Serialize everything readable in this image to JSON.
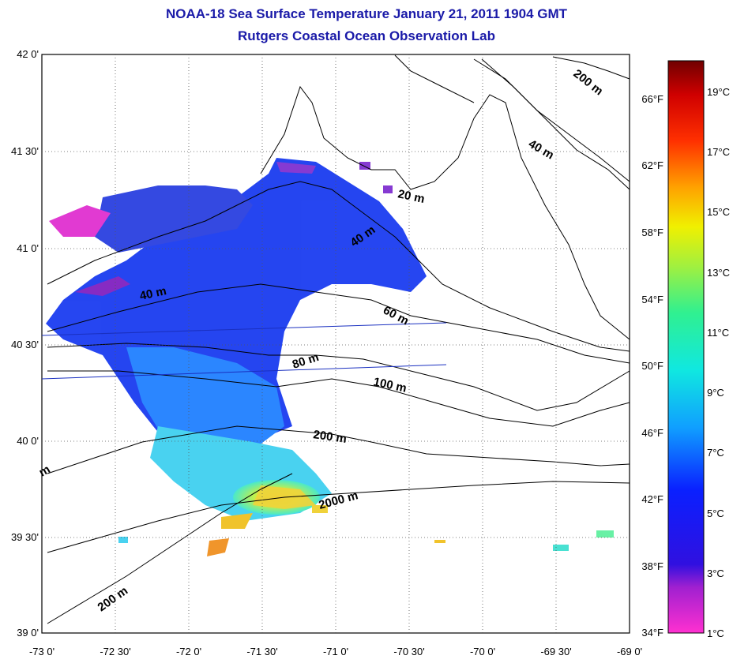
{
  "title": {
    "line1": "NOAA-18 Sea Surface Temperature January 21, 2011 1904 GMT",
    "line2": "Rutgers Coastal Ocean Observation Lab"
  },
  "lat_labels": [
    "42 0'",
    "41 30'",
    "41 0'",
    "40 30'",
    "40 0'",
    "39 30'",
    "39 0'"
  ],
  "lon_labels": [
    "-73 0'",
    "-72 30'",
    "-72 0'",
    "-71 30'",
    "-71 0'",
    "-70 30'",
    "-70 0'",
    "-69 30'",
    "-69 0'"
  ],
  "contour_labels": [
    "200 m",
    "40 m",
    "20 m",
    "40 m",
    "40 m",
    "60 m",
    "80 m",
    "100 m",
    "200 m",
    "2000 m",
    "200 m",
    "m"
  ],
  "colorbar": {
    "fahrenheit": [
      "66°F",
      "62°F",
      "58°F",
      "54°F",
      "50°F",
      "46°F",
      "42°F",
      "38°F",
      "34°F"
    ],
    "celsius": [
      "19°C",
      "17°C",
      "15°C",
      "13°C",
      "11°C",
      "9°C",
      "7°C",
      "5°C",
      "3°C",
      "1°C"
    ]
  }
}
